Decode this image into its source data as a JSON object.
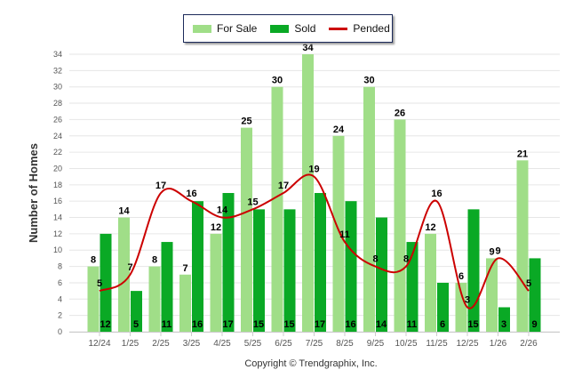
{
  "chart_data": {
    "type": "bar",
    "title": "",
    "xlabel": "",
    "ylabel": "Number of Homes",
    "ylim": [
      0,
      34
    ],
    "yticks": [
      0,
      2,
      4,
      6,
      8,
      10,
      12,
      14,
      16,
      18,
      20,
      22,
      24,
      26,
      28,
      30,
      32,
      34
    ],
    "grid": true,
    "legend_position": "top-center",
    "categories": [
      "12/24",
      "1/25",
      "2/25",
      "3/25",
      "4/25",
      "5/25",
      "6/25",
      "7/25",
      "8/25",
      "9/25",
      "10/25",
      "11/25",
      "12/25",
      "1/26",
      "2/26"
    ],
    "series": [
      {
        "name": "For Sale",
        "type": "bar",
        "color": "#a0de88",
        "values": [
          8,
          14,
          8,
          7,
          12,
          25,
          30,
          34,
          24,
          30,
          26,
          12,
          6,
          9,
          21
        ]
      },
      {
        "name": "Sold",
        "type": "bar",
        "color": "#0aa925",
        "values": [
          12,
          5,
          11,
          16,
          17,
          15,
          15,
          17,
          16,
          14,
          11,
          6,
          15,
          3,
          9
        ]
      },
      {
        "name": "Pended",
        "type": "line",
        "color": "#cc0000",
        "values": [
          5,
          7,
          17,
          16,
          14,
          15,
          17,
          19,
          11,
          8,
          8,
          16,
          3,
          9,
          5
        ]
      }
    ],
    "footer": "Copyright © Trendgraphix, Inc."
  }
}
